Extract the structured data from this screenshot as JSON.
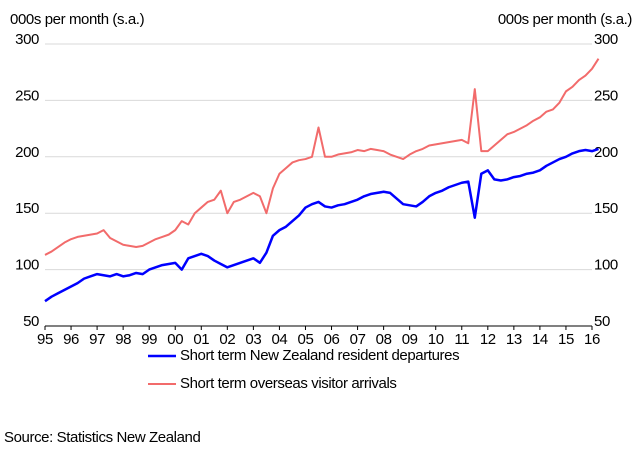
{
  "chart_data": {
    "type": "line",
    "y_label": "000s per month (s.a.)",
    "y2_label": "000s per month (s.a.)",
    "source": "Source: Statistics New Zealand",
    "x": [
      1995,
      1995.25,
      1995.5,
      1995.75,
      1996,
      1996.25,
      1996.5,
      1996.75,
      1997,
      1997.25,
      1997.5,
      1997.75,
      1998,
      1998.25,
      1998.5,
      1998.75,
      1999,
      1999.25,
      1999.5,
      1999.75,
      2000,
      2000.25,
      2000.5,
      2000.75,
      2001,
      2001.25,
      2001.5,
      2001.75,
      2002,
      2002.25,
      2002.5,
      2002.75,
      2003,
      2003.25,
      2003.5,
      2003.75,
      2004,
      2004.25,
      2004.5,
      2004.75,
      2005,
      2005.25,
      2005.5,
      2005.75,
      2006,
      2006.25,
      2006.5,
      2006.75,
      2007,
      2007.25,
      2007.5,
      2007.75,
      2008,
      2008.25,
      2008.5,
      2008.75,
      2009,
      2009.25,
      2009.5,
      2009.75,
      2010,
      2010.25,
      2010.5,
      2010.75,
      2011,
      2011.25,
      2011.5,
      2011.75,
      2012,
      2012.25,
      2012.5,
      2012.75,
      2013,
      2013.25,
      2013.5,
      2013.75,
      2014,
      2014.25,
      2014.5,
      2014.75,
      2015,
      2015.25,
      2015.5,
      2015.75,
      2016,
      2016.25
    ],
    "series": [
      {
        "name": "Short term New Zealand resident departures",
        "color": "#0000ff",
        "values": [
          72,
          76,
          79,
          82,
          85,
          88,
          92,
          94,
          96,
          95,
          94,
          96,
          94,
          95,
          97,
          96,
          100,
          102,
          104,
          105,
          106,
          100,
          110,
          112,
          114,
          112,
          108,
          105,
          102,
          104,
          106,
          108,
          110,
          106,
          115,
          130,
          135,
          138,
          143,
          148,
          155,
          158,
          160,
          156,
          155,
          157,
          158,
          160,
          162,
          165,
          167,
          168,
          169,
          168,
          163,
          158,
          157,
          156,
          160,
          165,
          168,
          170,
          173,
          175,
          177,
          178,
          146,
          185,
          188,
          180,
          179,
          180,
          182,
          183,
          185,
          186,
          188,
          192,
          195,
          198,
          200,
          203,
          205,
          206,
          205,
          207
        ]
      },
      {
        "name": "Short term overseas visitor arrivals",
        "color": "#f26b6b",
        "values": [
          113,
          116,
          120,
          124,
          127,
          129,
          130,
          131,
          132,
          135,
          128,
          125,
          122,
          121,
          120,
          121,
          124,
          127,
          129,
          131,
          135,
          143,
          140,
          150,
          155,
          160,
          162,
          170,
          150,
          160,
          162,
          165,
          168,
          165,
          150,
          172,
          185,
          190,
          195,
          197,
          198,
          200,
          226,
          200,
          200,
          202,
          203,
          204,
          206,
          205,
          207,
          206,
          205,
          202,
          200,
          198,
          202,
          205,
          207,
          210,
          211,
          212,
          213,
          214,
          215,
          212,
          260,
          205,
          205,
          210,
          215,
          220,
          222,
          225,
          228,
          232,
          235,
          240,
          242,
          248,
          258,
          262,
          268,
          272,
          278,
          287
        ]
      }
    ],
    "xlim": [
      1995,
      2016
    ],
    "xticks": [
      {
        "value": 1995,
        "label": "95"
      },
      {
        "value": 1996,
        "label": "96"
      },
      {
        "value": 1997,
        "label": "97"
      },
      {
        "value": 1998,
        "label": "98"
      },
      {
        "value": 1999,
        "label": "99"
      },
      {
        "value": 2000,
        "label": "00"
      },
      {
        "value": 2001,
        "label": "01"
      },
      {
        "value": 2002,
        "label": "02"
      },
      {
        "value": 2003,
        "label": "03"
      },
      {
        "value": 2004,
        "label": "04"
      },
      {
        "value": 2005,
        "label": "05"
      },
      {
        "value": 2006,
        "label": "06"
      },
      {
        "value": 2007,
        "label": "07"
      },
      {
        "value": 2008,
        "label": "08"
      },
      {
        "value": 2009,
        "label": "09"
      },
      {
        "value": 2010,
        "label": "10"
      },
      {
        "value": 2011,
        "label": "11"
      },
      {
        "value": 2012,
        "label": "12"
      },
      {
        "value": 2013,
        "label": "13"
      },
      {
        "value": 2014,
        "label": "14"
      },
      {
        "value": 2015,
        "label": "15"
      },
      {
        "value": 2016,
        "label": "16"
      }
    ],
    "ylim": [
      50,
      300
    ],
    "yticks": [
      50,
      100,
      150,
      200,
      250,
      300
    ],
    "y2lim": [
      50,
      300
    ],
    "y2ticks": [
      50,
      100,
      150,
      200,
      250,
      300
    ],
    "grid": true
  }
}
